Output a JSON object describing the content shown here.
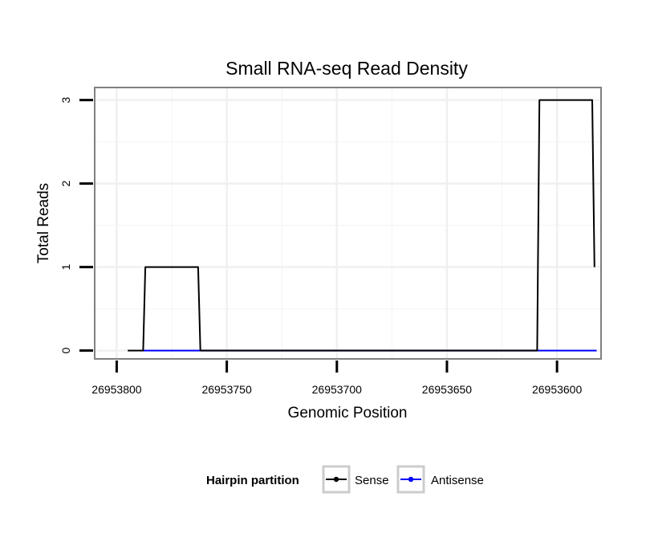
{
  "chart_data": {
    "type": "line",
    "title": "Small RNA-seq Read Density",
    "xlabel": "Genomic Position",
    "ylabel": "Total Reads",
    "x_reversed": true,
    "xlim": [
      26953810,
      26953580
    ],
    "ylim": [
      -0.1,
      3.15
    ],
    "x_ticks": [
      26953800,
      26953750,
      26953700,
      26953650,
      26953600
    ],
    "x_tick_labels": [
      "26953800",
      "26953750",
      "26953700",
      "26953650",
      "26953600"
    ],
    "y_ticks": [
      0,
      1,
      2,
      3
    ],
    "y_tick_labels": [
      "0",
      "1",
      "2",
      "3"
    ],
    "grid": true,
    "legend": {
      "title": "Hairpin partition",
      "position": "bottom",
      "entries": [
        "Sense",
        "Antisense"
      ]
    },
    "series": [
      {
        "name": "Sense",
        "color": "#000000",
        "x": [
          26953795,
          26953788,
          26953787,
          26953763,
          26953762,
          26953609,
          26953608,
          26953584,
          26953583
        ],
        "y": [
          0,
          0,
          1,
          1,
          0,
          0,
          3,
          3,
          1
        ]
      },
      {
        "name": "Antisense",
        "color": "#0000ff",
        "x": [
          26953788,
          26953762,
          26953609,
          26953582
        ],
        "y": [
          0,
          0,
          0,
          0
        ]
      }
    ]
  }
}
